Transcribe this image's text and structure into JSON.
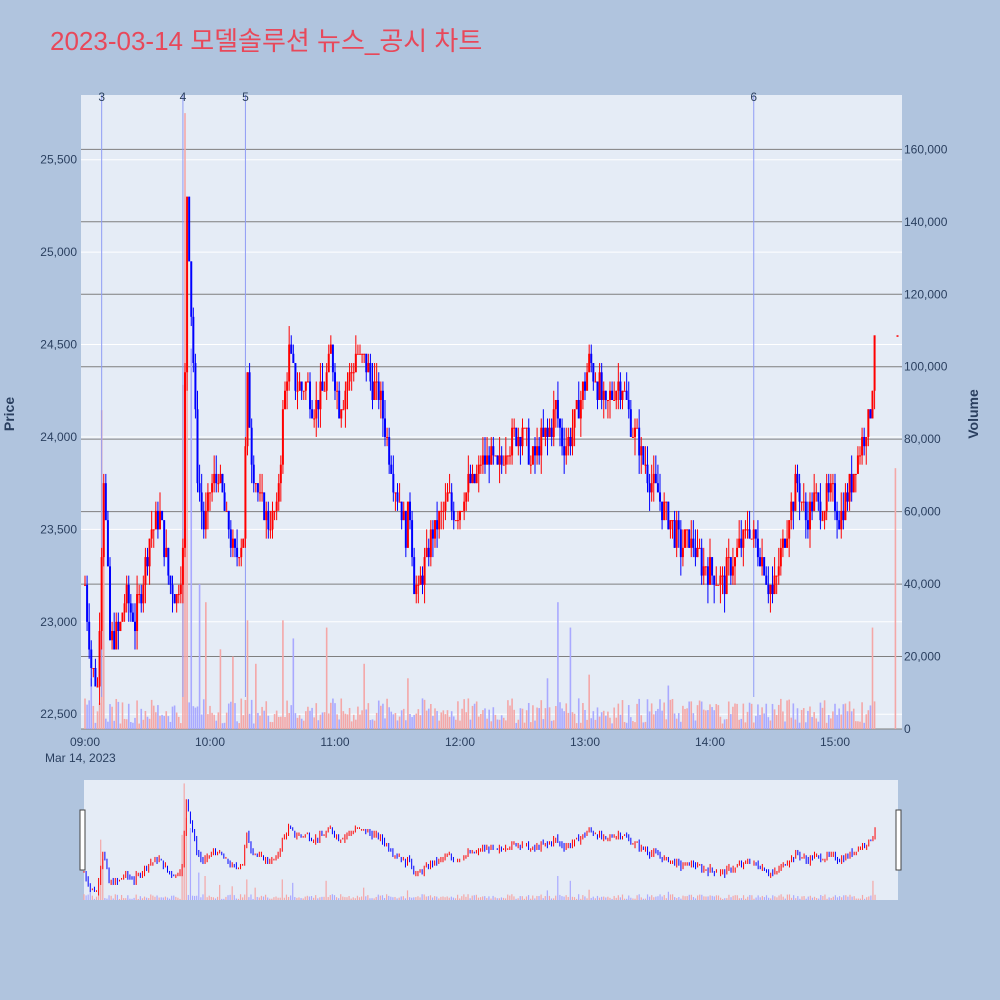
{
  "title": "2023-03-14 모델솔루션 뉴스_공시 차트",
  "colors": {
    "page_bg": "#b0c4de",
    "plot_bg": "#e5ecf6",
    "up": "#ff0000",
    "down": "#0000ff",
    "volume_up": "#f4a7a7",
    "volume_down": "#a9a9ff",
    "event_line": "#8f9cf5",
    "title": "#e8485a",
    "axis_text": "#2a3f5f"
  },
  "chart_data": {
    "type": "candlestick",
    "xlabel": "",
    "x_date_label": "Mar 14, 2023",
    "x_tick_labels": [
      "09:00",
      "10:00",
      "11:00",
      "12:00",
      "13:00",
      "14:00",
      "15:00"
    ],
    "x_range_minutes": [
      "09:00",
      "15:30"
    ],
    "price_axis": {
      "label": "Price",
      "range": [
        22420,
        25850
      ],
      "tick_labels": [
        "22,500",
        "23,000",
        "23,500",
        "24,000",
        "24,500",
        "25,000",
        "25,500"
      ],
      "tick_values": [
        22500,
        23000,
        23500,
        24000,
        24500,
        25000,
        25500
      ]
    },
    "volume_axis": {
      "label": "Volume",
      "range": [
        0,
        175000
      ],
      "tick_labels": [
        "0",
        "20,000",
        "40,000",
        "60,000",
        "80,000",
        "100,000",
        "120,000",
        "140,000",
        "160,000"
      ],
      "tick_values": [
        0,
        20000,
        40000,
        60000,
        80000,
        100000,
        120000,
        140000,
        160000
      ]
    },
    "events": [
      {
        "label": "3",
        "time": "09:08"
      },
      {
        "label": "4",
        "time": "09:47"
      },
      {
        "label": "5",
        "time": "10:17"
      },
      {
        "label": "6",
        "time": "14:21"
      }
    ],
    "price_keypoints": [
      [
        "09:00",
        23200
      ],
      [
        "09:03",
        22750
      ],
      [
        "09:06",
        22650
      ],
      [
        "09:09",
        23800
      ],
      [
        "09:12",
        22900
      ],
      [
        "09:16",
        22950
      ],
      [
        "09:20",
        23150
      ],
      [
        "09:24",
        23000
      ],
      [
        "09:28",
        23250
      ],
      [
        "09:32",
        23500
      ],
      [
        "09:36",
        23550
      ],
      [
        "09:40",
        23250
      ],
      [
        "09:44",
        23150
      ],
      [
        "09:47",
        23350
      ],
      [
        "09:49",
        25300
      ],
      [
        "09:51",
        24700
      ],
      [
        "09:54",
        23800
      ],
      [
        "09:57",
        23500
      ],
      [
        "10:00",
        23700
      ],
      [
        "10:04",
        23800
      ],
      [
        "10:08",
        23550
      ],
      [
        "10:12",
        23350
      ],
      [
        "10:16",
        23500
      ],
      [
        "10:18",
        24300
      ],
      [
        "10:20",
        23900
      ],
      [
        "10:24",
        23650
      ],
      [
        "10:28",
        23550
      ],
      [
        "10:32",
        23600
      ],
      [
        "10:35",
        24100
      ],
      [
        "10:38",
        24450
      ],
      [
        "10:42",
        24250
      ],
      [
        "10:46",
        24300
      ],
      [
        "10:50",
        24150
      ],
      [
        "10:54",
        24250
      ],
      [
        "10:58",
        24450
      ],
      [
        "11:02",
        24150
      ],
      [
        "11:06",
        24300
      ],
      [
        "11:10",
        24450
      ],
      [
        "11:14",
        24400
      ],
      [
        "11:18",
        24300
      ],
      [
        "11:22",
        24200
      ],
      [
        "11:26",
        23900
      ],
      [
        "11:30",
        23700
      ],
      [
        "11:34",
        23500
      ],
      [
        "11:36",
        23600
      ],
      [
        "11:38",
        23200
      ],
      [
        "11:40",
        23150
      ],
      [
        "11:43",
        23300
      ],
      [
        "11:46",
        23450
      ],
      [
        "11:50",
        23550
      ],
      [
        "11:54",
        23650
      ],
      [
        "11:58",
        23600
      ],
      [
        "12:02",
        23700
      ],
      [
        "12:06",
        23750
      ],
      [
        "12:10",
        23850
      ],
      [
        "12:14",
        23900
      ],
      [
        "12:18",
        23800
      ],
      [
        "12:22",
        23950
      ],
      [
        "12:26",
        24000
      ],
      [
        "12:30",
        24050
      ],
      [
        "12:34",
        23850
      ],
      [
        "12:38",
        23950
      ],
      [
        "12:42",
        24000
      ],
      [
        "12:46",
        24150
      ],
      [
        "12:50",
        23950
      ],
      [
        "12:54",
        24050
      ],
      [
        "12:58",
        24200
      ],
      [
        "13:02",
        24400
      ],
      [
        "13:06",
        24300
      ],
      [
        "13:10",
        24150
      ],
      [
        "13:14",
        24250
      ],
      [
        "13:18",
        24300
      ],
      [
        "13:22",
        24100
      ],
      [
        "13:26",
        23950
      ],
      [
        "13:30",
        23800
      ],
      [
        "13:34",
        23700
      ],
      [
        "13:38",
        23600
      ],
      [
        "13:42",
        23500
      ],
      [
        "13:46",
        23400
      ],
      [
        "13:50",
        23450
      ],
      [
        "13:54",
        23350
      ],
      [
        "13:58",
        23300
      ],
      [
        "14:02",
        23250
      ],
      [
        "14:06",
        23200
      ],
      [
        "14:10",
        23300
      ],
      [
        "14:14",
        23400
      ],
      [
        "14:18",
        23500
      ],
      [
        "14:22",
        23450
      ],
      [
        "14:26",
        23300
      ],
      [
        "14:30",
        23150
      ],
      [
        "14:34",
        23350
      ],
      [
        "14:38",
        23600
      ],
      [
        "14:42",
        23750
      ],
      [
        "14:46",
        23550
      ],
      [
        "14:50",
        23650
      ],
      [
        "14:54",
        23600
      ],
      [
        "14:58",
        23700
      ],
      [
        "15:02",
        23550
      ],
      [
        "15:06",
        23700
      ],
      [
        "15:10",
        23850
      ],
      [
        "15:14",
        24000
      ],
      [
        "15:17",
        24150
      ],
      [
        "15:19",
        24450
      ]
    ],
    "volume_spikes": [
      [
        "09:03",
        14000
      ],
      [
        "09:08",
        88000
      ],
      [
        "09:09",
        60000
      ],
      [
        "09:47",
        95000
      ],
      [
        "09:48",
        170000
      ],
      [
        "09:49",
        120000
      ],
      [
        "09:51",
        105000
      ],
      [
        "09:55",
        40000
      ],
      [
        "09:58",
        35000
      ],
      [
        "10:05",
        22000
      ],
      [
        "10:11",
        20000
      ],
      [
        "10:18",
        30000
      ],
      [
        "10:22",
        18000
      ],
      [
        "10:35",
        30000
      ],
      [
        "10:40",
        25000
      ],
      [
        "10:56",
        28000
      ],
      [
        "11:14",
        18000
      ],
      [
        "11:35",
        14000
      ],
      [
        "12:42",
        14000
      ],
      [
        "12:47",
        35000
      ],
      [
        "12:53",
        28000
      ],
      [
        "13:02",
        15000
      ],
      [
        "13:40",
        12000
      ],
      [
        "15:18",
        28000
      ],
      [
        "15:29",
        72000
      ]
    ],
    "last_close": 24550
  }
}
